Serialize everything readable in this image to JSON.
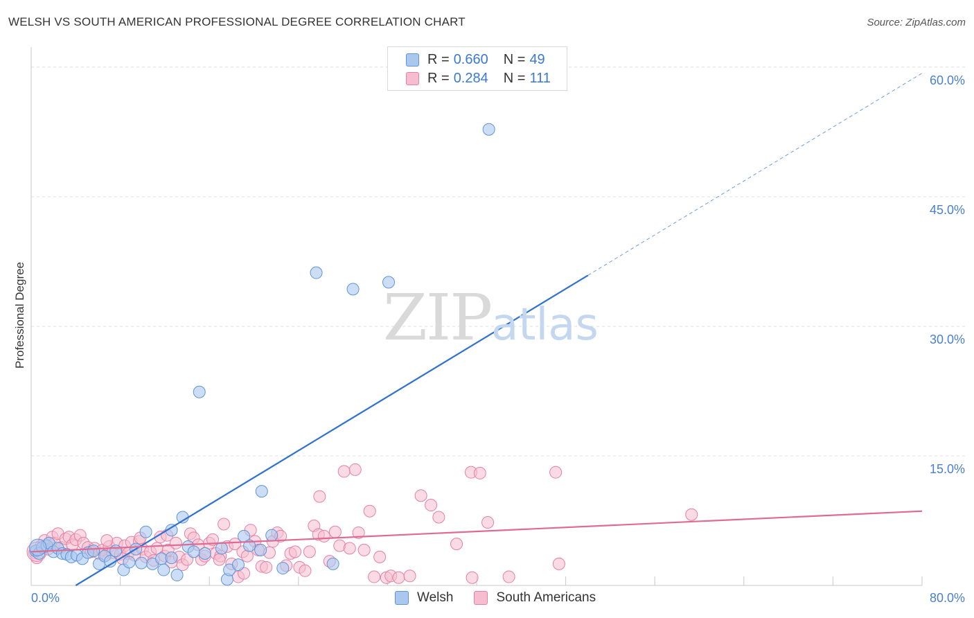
{
  "title": "WELSH VS SOUTH AMERICAN PROFESSIONAL DEGREE CORRELATION CHART",
  "source": "Source: ZipAtlas.com",
  "watermark": {
    "zip": "ZIP",
    "atlas": "atlas"
  },
  "legend": {
    "rows": [
      {
        "r_label": "R =",
        "r_value": "0.660",
        "n_label": "N =",
        "n_value": "49"
      },
      {
        "r_label": "R =",
        "r_value": "0.284",
        "n_label": "N =",
        "n_value": "111"
      }
    ]
  },
  "bottom_legend": {
    "welsh": "Welsh",
    "south_americans": "South Americans"
  },
  "colors": {
    "welsh_fill": "#aac8ee",
    "welsh_stroke": "#5f93d8",
    "welsh_line": "#2f72d0",
    "sa_fill": "#f6bdd0",
    "sa_stroke": "#e77fa2",
    "sa_line": "#e06a93",
    "grid": "#dcdcdc",
    "axis_text": "#4a7fd0"
  },
  "chart_data": {
    "type": "scatter",
    "title": "WELSH VS SOUTH AMERICAN PROFESSIONAL DEGREE CORRELATION CHART",
    "xlabel": "",
    "ylabel": "Professional Degree",
    "xlim": [
      0,
      80
    ],
    "ylim": [
      0,
      62
    ],
    "x_tick_labels": [
      "0.0%",
      "80.0%"
    ],
    "y_ticks": [
      15,
      30,
      45,
      60
    ],
    "y_tick_labels": [
      "15.0%",
      "30.0%",
      "45.0%",
      "60.0%"
    ],
    "grid": true,
    "legend_position": "top-center",
    "series": [
      {
        "name": "Welsh",
        "r": 0.66,
        "n": 49,
        "trend": {
          "x0": 4,
          "y0": 0,
          "x1": 50,
          "y1": 35.9,
          "dash_to_x": 80,
          "dash_to_y": 59.3
        },
        "points": [
          [
            0.4,
            4.0
          ],
          [
            0.7,
            3.7
          ],
          [
            1.0,
            4.4
          ],
          [
            1.4,
            4.6
          ],
          [
            1.6,
            4.9
          ],
          [
            2.0,
            3.9
          ],
          [
            2.4,
            4.3
          ],
          [
            2.8,
            3.7
          ],
          [
            3.2,
            3.6
          ],
          [
            3.6,
            3.3
          ],
          [
            4.1,
            3.5
          ],
          [
            4.6,
            3.1
          ],
          [
            5.1,
            3.8
          ],
          [
            5.6,
            4.0
          ],
          [
            6.1,
            2.5
          ],
          [
            6.6,
            3.4
          ],
          [
            7.1,
            2.8
          ],
          [
            7.6,
            4.0
          ],
          [
            8.3,
            1.8
          ],
          [
            8.8,
            2.7
          ],
          [
            9.4,
            4.2
          ],
          [
            9.9,
            2.6
          ],
          [
            10.3,
            6.2
          ],
          [
            10.9,
            2.5
          ],
          [
            11.7,
            3.1
          ],
          [
            11.9,
            1.8
          ],
          [
            12.6,
            3.2
          ],
          [
            12.6,
            6.4
          ],
          [
            13.1,
            1.2
          ],
          [
            13.6,
            7.9
          ],
          [
            14.1,
            4.5
          ],
          [
            14.6,
            3.9
          ],
          [
            15.1,
            22.4
          ],
          [
            15.6,
            3.7
          ],
          [
            17.1,
            4.3
          ],
          [
            17.6,
            0.7
          ],
          [
            17.8,
            1.8
          ],
          [
            18.6,
            2.4
          ],
          [
            19.1,
            5.7
          ],
          [
            19.6,
            4.6
          ],
          [
            20.6,
            4.1
          ],
          [
            20.7,
            10.9
          ],
          [
            21.6,
            5.8
          ],
          [
            22.6,
            2.0
          ],
          [
            25.6,
            36.2
          ],
          [
            27.1,
            2.5
          ],
          [
            28.9,
            34.3
          ],
          [
            32.1,
            35.1
          ],
          [
            41.1,
            52.8
          ]
        ]
      },
      {
        "name": "South Americans",
        "r": 0.284,
        "n": 111,
        "trend": {
          "x0": 0,
          "y0": 3.9,
          "x1": 80,
          "y1": 8.6
        },
        "points": [
          [
            0.3,
            3.8
          ],
          [
            0.5,
            3.2
          ],
          [
            0.9,
            4.6
          ],
          [
            1.2,
            5.2
          ],
          [
            1.5,
            4.2
          ],
          [
            1.9,
            5.6
          ],
          [
            2.1,
            4.9
          ],
          [
            2.4,
            6.0
          ],
          [
            2.7,
            4.4
          ],
          [
            3.1,
            5.4
          ],
          [
            3.4,
            5.6
          ],
          [
            3.7,
            4.7
          ],
          [
            4.0,
            5.3
          ],
          [
            4.4,
            5.8
          ],
          [
            4.7,
            4.9
          ],
          [
            5.1,
            4.4
          ],
          [
            5.4,
            3.9
          ],
          [
            5.7,
            4.3
          ],
          [
            6.1,
            3.7
          ],
          [
            6.4,
            4.1
          ],
          [
            6.7,
            3.5
          ],
          [
            7.0,
            4.5
          ],
          [
            7.3,
            3.8
          ],
          [
            7.7,
            4.9
          ],
          [
            8.0,
            3.6
          ],
          [
            8.4,
            4.6
          ],
          [
            8.7,
            3.7
          ],
          [
            9.0,
            5.0
          ],
          [
            9.3,
            3.5
          ],
          [
            9.7,
            5.1
          ],
          [
            10.0,
            4.2
          ],
          [
            10.3,
            3.3
          ],
          [
            10.7,
            3.9
          ],
          [
            11.0,
            2.9
          ],
          [
            11.3,
            4.3
          ],
          [
            11.6,
            5.6
          ],
          [
            12.0,
            3.4
          ],
          [
            12.3,
            4.1
          ],
          [
            12.6,
            2.7
          ],
          [
            13.0,
            4.9
          ],
          [
            13.3,
            3.3
          ],
          [
            13.6,
            2.4
          ],
          [
            14.0,
            3.0
          ],
          [
            14.3,
            6.0
          ],
          [
            14.6,
            5.5
          ],
          [
            15.0,
            4.7
          ],
          [
            15.3,
            3.0
          ],
          [
            15.6,
            3.4
          ],
          [
            16.0,
            4.9
          ],
          [
            16.3,
            5.3
          ],
          [
            16.6,
            3.7
          ],
          [
            17.0,
            3.4
          ],
          [
            17.3,
            7.1
          ],
          [
            17.6,
            4.5
          ],
          [
            18.0,
            2.5
          ],
          [
            18.3,
            4.8
          ],
          [
            18.6,
            1.0
          ],
          [
            19.0,
            3.9
          ],
          [
            19.4,
            3.4
          ],
          [
            19.7,
            6.4
          ],
          [
            20.1,
            5.1
          ],
          [
            20.4,
            4.1
          ],
          [
            20.7,
            2.2
          ],
          [
            21.1,
            2.1
          ],
          [
            21.4,
            3.8
          ],
          [
            21.7,
            5.1
          ],
          [
            22.1,
            6.1
          ],
          [
            22.4,
            5.7
          ],
          [
            22.9,
            2.3
          ],
          [
            23.3,
            3.7
          ],
          [
            23.7,
            3.9
          ],
          [
            24.1,
            2.1
          ],
          [
            24.6,
            1.7
          ],
          [
            25.0,
            3.9
          ],
          [
            25.4,
            6.9
          ],
          [
            25.8,
            5.9
          ],
          [
            25.9,
            10.3
          ],
          [
            26.3,
            5.7
          ],
          [
            26.8,
            2.8
          ],
          [
            27.3,
            6.2
          ],
          [
            27.7,
            4.6
          ],
          [
            28.1,
            13.2
          ],
          [
            28.6,
            4.3
          ],
          [
            29.1,
            13.4
          ],
          [
            29.4,
            6.1
          ],
          [
            29.9,
            4.1
          ],
          [
            30.4,
            8.6
          ],
          [
            30.8,
            1.0
          ],
          [
            31.3,
            3.3
          ],
          [
            31.9,
            0.9
          ],
          [
            32.3,
            1.1
          ],
          [
            33.0,
            0.9
          ],
          [
            34.0,
            1.1
          ],
          [
            35.0,
            10.4
          ],
          [
            35.9,
            9.3
          ],
          [
            36.6,
            7.9
          ],
          [
            38.2,
            4.8
          ],
          [
            39.5,
            13.1
          ],
          [
            39.6,
            0.9
          ],
          [
            40.3,
            13.0
          ],
          [
            41.0,
            7.3
          ],
          [
            42.9,
            1.0
          ],
          [
            47.1,
            13.1
          ],
          [
            47.4,
            2.5
          ],
          [
            59.3,
            8.2
          ],
          [
            19.1,
            1.4
          ],
          [
            16.9,
            3.0
          ],
          [
            9.8,
            5.5
          ],
          [
            8.2,
            3.1
          ],
          [
            6.8,
            5.2
          ],
          [
            12.2,
            5.8
          ]
        ]
      }
    ]
  }
}
